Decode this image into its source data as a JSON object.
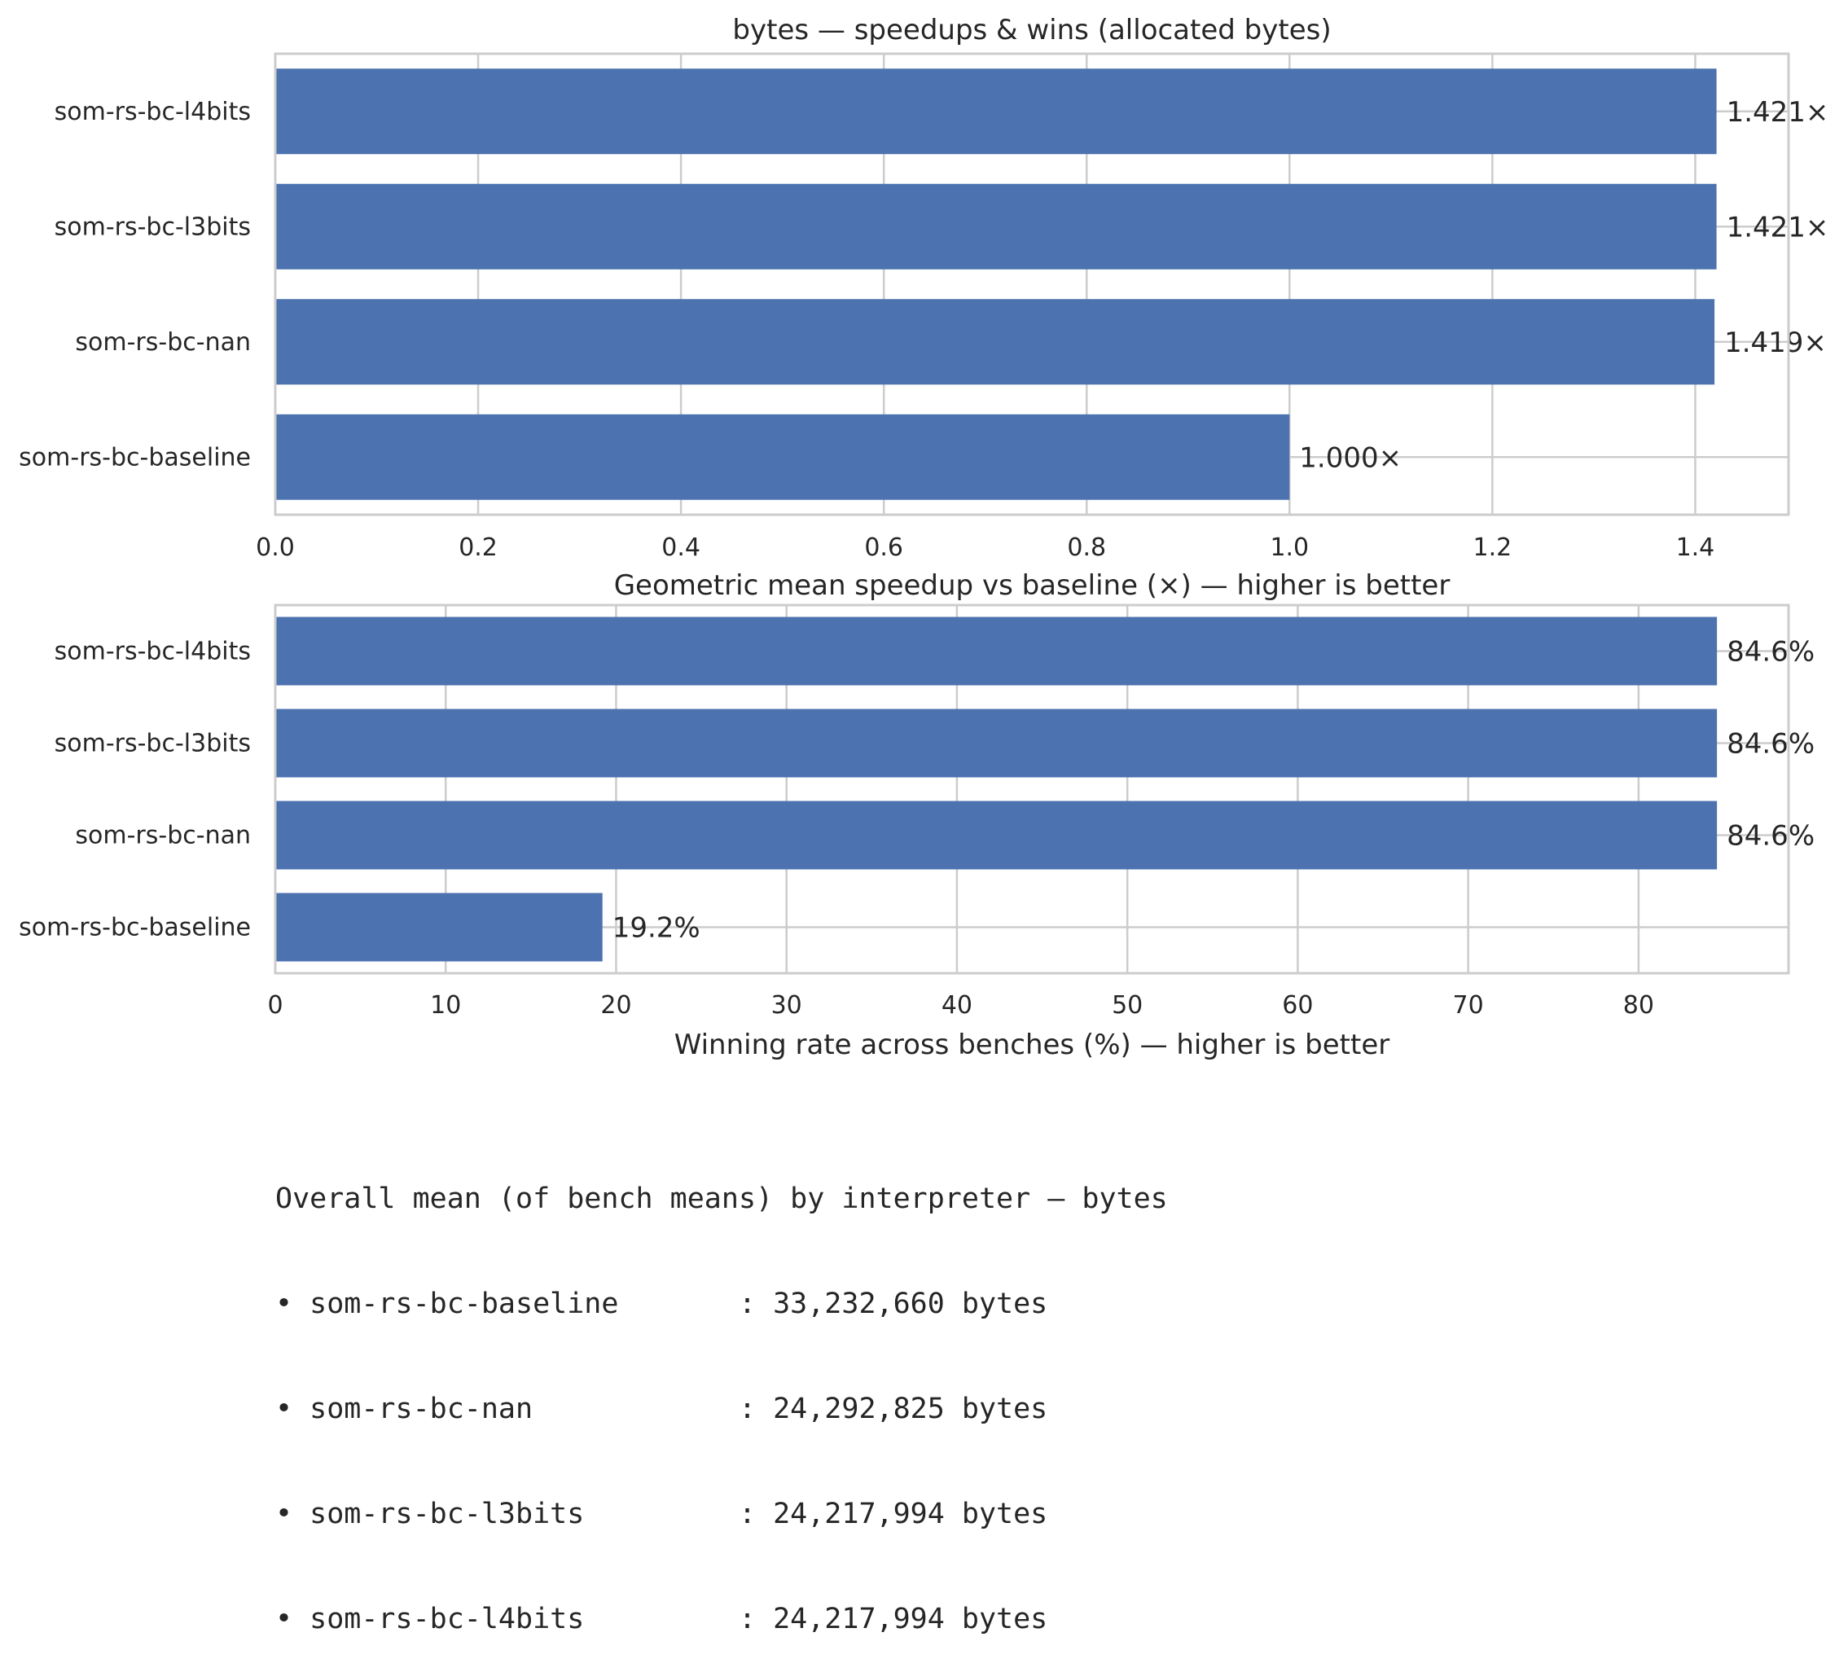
{
  "colors": {
    "bar": "#4c72b0",
    "grid": "#cccccc",
    "frame": "#cccccc",
    "text": "#262626"
  },
  "chart_data": [
    {
      "type": "bar",
      "orientation": "horizontal",
      "title": "bytes — speedups & wins (allocated bytes)",
      "xlabel": "Geometric mean speedup vs baseline (×) — higher is better",
      "ylabel": "",
      "categories": [
        "som-rs-bc-l4bits",
        "som-rs-bc-l3bits",
        "som-rs-bc-nan",
        "som-rs-bc-baseline"
      ],
      "values": [
        1.421,
        1.421,
        1.419,
        1.0
      ],
      "data_labels": [
        "1.421×",
        "1.421×",
        "1.419×",
        "1.000×"
      ],
      "xlim": [
        0,
        1.492
      ],
      "xticks": [
        0.0,
        0.2,
        0.4,
        0.6,
        0.8,
        1.0,
        1.2,
        1.4
      ],
      "xtick_labels": [
        "0.0",
        "0.2",
        "0.4",
        "0.6",
        "0.8",
        "1.0",
        "1.2",
        "1.4"
      ],
      "grid": true,
      "legend": "none"
    },
    {
      "type": "bar",
      "orientation": "horizontal",
      "title": "",
      "xlabel": "Winning rate across benches (%) — higher is better",
      "ylabel": "",
      "categories": [
        "som-rs-bc-l4bits",
        "som-rs-bc-l3bits",
        "som-rs-bc-nan",
        "som-rs-bc-baseline"
      ],
      "values": [
        84.6,
        84.6,
        84.6,
        19.2
      ],
      "data_labels": [
        "84.6%",
        "84.6%",
        "84.6%",
        "19.2%"
      ],
      "xlim": [
        0,
        88.8
      ],
      "xticks": [
        0,
        10,
        20,
        30,
        40,
        50,
        60,
        70,
        80
      ],
      "xtick_labels": [
        "0",
        "10",
        "20",
        "30",
        "40",
        "50",
        "60",
        "70",
        "80"
      ],
      "grid": true,
      "legend": "none"
    }
  ],
  "summary": {
    "heading": "Overall mean (of bench means) by interpreter — bytes",
    "rows": [
      "• som-rs-bc-baseline       : 33,232,660 bytes",
      "• som-rs-bc-nan            : 24,292,825 bytes",
      "• som-rs-bc-l3bits         : 24,217,994 bytes",
      "• som-rs-bc-l4bits         : 24,217,994 bytes"
    ]
  }
}
